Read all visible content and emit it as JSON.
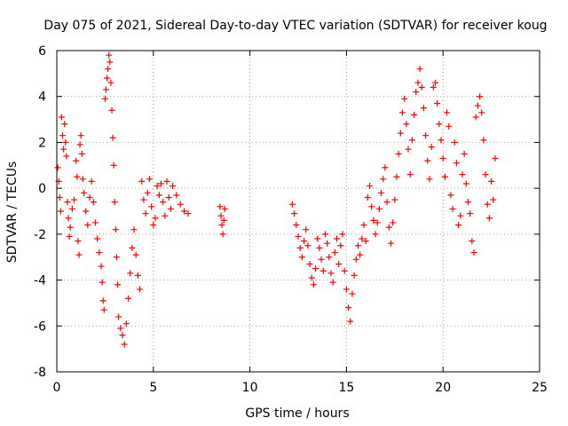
{
  "chart_data": {
    "type": "scatter",
    "title": "Day 075 of 2021, Sidereal Day-to-day VTEC variation (SDTVAR) for receiver koug",
    "xlabel": "GPS time / hours",
    "ylabel": "SDTVAR / TECUs",
    "xlim": [
      0,
      25
    ],
    "ylim": [
      -8,
      6
    ],
    "xticks": [
      0,
      5,
      10,
      15,
      20,
      25
    ],
    "yticks": [
      -8,
      -6,
      -4,
      -2,
      0,
      2,
      4,
      6
    ],
    "grid": true,
    "marker": "+",
    "color": "#ff0000",
    "series": [
      {
        "name": "SDTVAR",
        "points": [
          [
            0.05,
            0.9
          ],
          [
            0.1,
            0.3
          ],
          [
            0.15,
            -0.4
          ],
          [
            0.2,
            -1.0
          ],
          [
            0.25,
            3.1
          ],
          [
            0.3,
            2.3
          ],
          [
            0.35,
            1.7
          ],
          [
            0.4,
            2.8
          ],
          [
            0.45,
            2.0
          ],
          [
            0.5,
            1.4
          ],
          [
            0.55,
            -0.6
          ],
          [
            0.6,
            -1.3
          ],
          [
            0.65,
            -2.1
          ],
          [
            0.7,
            -1.7
          ],
          [
            0.8,
            -0.9
          ],
          [
            0.9,
            -0.5
          ],
          [
            1.0,
            1.2
          ],
          [
            1.05,
            0.5
          ],
          [
            1.1,
            -2.3
          ],
          [
            1.15,
            -2.9
          ],
          [
            1.2,
            1.9
          ],
          [
            1.25,
            2.3
          ],
          [
            1.3,
            1.5
          ],
          [
            1.35,
            0.4
          ],
          [
            1.4,
            -0.2
          ],
          [
            1.5,
            -1.0
          ],
          [
            1.6,
            -1.6
          ],
          [
            1.7,
            -0.4
          ],
          [
            1.8,
            0.3
          ],
          [
            1.9,
            -0.6
          ],
          [
            2.0,
            -1.5
          ],
          [
            2.1,
            -2.2
          ],
          [
            2.2,
            -2.8
          ],
          [
            2.3,
            -3.4
          ],
          [
            2.35,
            -4.1
          ],
          [
            2.4,
            -4.9
          ],
          [
            2.45,
            -5.3
          ],
          [
            2.5,
            3.9
          ],
          [
            2.55,
            4.3
          ],
          [
            2.6,
            4.8
          ],
          [
            2.65,
            5.2
          ],
          [
            2.7,
            5.8
          ],
          [
            2.75,
            5.5
          ],
          [
            2.8,
            4.6
          ],
          [
            2.85,
            3.4
          ],
          [
            2.9,
            2.2
          ],
          [
            2.95,
            1.0
          ],
          [
            3.0,
            -0.6
          ],
          [
            3.05,
            -1.8
          ],
          [
            3.1,
            -3.0
          ],
          [
            3.15,
            -4.2
          ],
          [
            3.2,
            -5.6
          ],
          [
            3.3,
            -6.1
          ],
          [
            3.4,
            -6.4
          ],
          [
            3.5,
            -6.8
          ],
          [
            3.6,
            -5.9
          ],
          [
            3.7,
            -4.8
          ],
          [
            3.8,
            -3.7
          ],
          [
            3.9,
            -2.6
          ],
          [
            4.0,
            -1.8
          ],
          [
            4.1,
            -2.9
          ],
          [
            4.2,
            -3.8
          ],
          [
            4.3,
            -4.4
          ],
          [
            4.4,
            0.3
          ],
          [
            4.5,
            -0.5
          ],
          [
            4.6,
            -1.1
          ],
          [
            4.7,
            -0.2
          ],
          [
            4.8,
            0.4
          ],
          [
            4.9,
            -0.8
          ],
          [
            5.0,
            -1.6
          ],
          [
            5.1,
            -1.3
          ],
          [
            5.2,
            0.1
          ],
          [
            5.3,
            -0.3
          ],
          [
            5.4,
            0.2
          ],
          [
            5.5,
            -0.6
          ],
          [
            5.6,
            -1.2
          ],
          [
            5.7,
            0.3
          ],
          [
            5.8,
            -0.4
          ],
          [
            5.9,
            -0.9
          ],
          [
            6.0,
            0.1
          ],
          [
            6.2,
            -0.3
          ],
          [
            6.4,
            -0.7
          ],
          [
            6.6,
            -1.0
          ],
          [
            6.8,
            -1.1
          ],
          [
            8.45,
            -0.8
          ],
          [
            8.5,
            -1.2
          ],
          [
            8.55,
            -1.6
          ],
          [
            8.6,
            -2.0
          ],
          [
            8.65,
            -1.4
          ],
          [
            8.7,
            -0.9
          ],
          [
            12.2,
            -0.7
          ],
          [
            12.3,
            -1.1
          ],
          [
            12.4,
            -1.6
          ],
          [
            12.5,
            -2.1
          ],
          [
            12.6,
            -2.6
          ],
          [
            12.7,
            -3.0
          ],
          [
            12.8,
            -2.3
          ],
          [
            12.9,
            -1.8
          ],
          [
            13.0,
            -2.5
          ],
          [
            13.1,
            -3.3
          ],
          [
            13.2,
            -3.9
          ],
          [
            13.3,
            -4.2
          ],
          [
            13.4,
            -3.5
          ],
          [
            13.5,
            -2.2
          ],
          [
            13.6,
            -2.6
          ],
          [
            13.7,
            -3.1
          ],
          [
            13.8,
            -3.6
          ],
          [
            13.9,
            -2.0
          ],
          [
            14.0,
            -2.4
          ],
          [
            14.1,
            -3.0
          ],
          [
            14.2,
            -3.7
          ],
          [
            14.3,
            -4.1
          ],
          [
            14.4,
            -2.8
          ],
          [
            14.5,
            -2.2
          ],
          [
            14.6,
            -3.3
          ],
          [
            14.7,
            -2.5
          ],
          [
            14.8,
            -2.0
          ],
          [
            14.9,
            -3.6
          ],
          [
            15.0,
            -4.4
          ],
          [
            15.1,
            -5.2
          ],
          [
            15.2,
            -5.8
          ],
          [
            15.3,
            -4.6
          ],
          [
            15.4,
            -3.8
          ],
          [
            15.5,
            -3.1
          ],
          [
            15.6,
            -2.5
          ],
          [
            15.7,
            -2.9
          ],
          [
            15.8,
            -2.2
          ],
          [
            15.9,
            -1.6
          ],
          [
            16.0,
            -2.3
          ],
          [
            16.1,
            -0.4
          ],
          [
            16.2,
            0.1
          ],
          [
            16.3,
            -0.8
          ],
          [
            16.4,
            -1.4
          ],
          [
            16.5,
            -2.0
          ],
          [
            16.6,
            -1.5
          ],
          [
            16.7,
            -0.9
          ],
          [
            16.8,
            -0.2
          ],
          [
            16.9,
            0.4
          ],
          [
            17.0,
            0.9
          ],
          [
            17.1,
            -0.6
          ],
          [
            17.2,
            -1.7
          ],
          [
            17.3,
            -2.4
          ],
          [
            17.4,
            -1.5
          ],
          [
            17.5,
            -0.5
          ],
          [
            17.6,
            0.5
          ],
          [
            17.7,
            1.5
          ],
          [
            17.8,
            2.4
          ],
          [
            17.9,
            3.3
          ],
          [
            18.0,
            3.9
          ],
          [
            18.1,
            2.8
          ],
          [
            18.2,
            1.7
          ],
          [
            18.3,
            0.6
          ],
          [
            18.4,
            2.1
          ],
          [
            18.5,
            3.2
          ],
          [
            18.6,
            4.2
          ],
          [
            18.7,
            4.6
          ],
          [
            18.8,
            5.2
          ],
          [
            18.9,
            4.4
          ],
          [
            19.0,
            3.5
          ],
          [
            19.1,
            2.3
          ],
          [
            19.2,
            1.2
          ],
          [
            19.3,
            0.4
          ],
          [
            19.4,
            1.8
          ],
          [
            19.5,
            4.4
          ],
          [
            19.6,
            4.6
          ],
          [
            19.7,
            3.7
          ],
          [
            19.8,
            2.8
          ],
          [
            19.9,
            2.1
          ],
          [
            20.0,
            1.3
          ],
          [
            20.1,
            0.5
          ],
          [
            20.2,
            3.3
          ],
          [
            20.3,
            2.7
          ],
          [
            20.4,
            -0.3
          ],
          [
            20.5,
            -0.9
          ],
          [
            20.6,
            2.0
          ],
          [
            20.7,
            1.1
          ],
          [
            20.8,
            -1.6
          ],
          [
            20.9,
            -1.2
          ],
          [
            21.0,
            0.6
          ],
          [
            21.1,
            1.5
          ],
          [
            21.2,
            0.2
          ],
          [
            21.3,
            -0.6
          ],
          [
            21.4,
            -1.1
          ],
          [
            21.5,
            -2.3
          ],
          [
            21.6,
            -2.8
          ],
          [
            21.7,
            3.1
          ],
          [
            21.8,
            3.6
          ],
          [
            21.9,
            4.0
          ],
          [
            22.0,
            3.3
          ],
          [
            22.1,
            2.1
          ],
          [
            22.2,
            0.6
          ],
          [
            22.3,
            -0.7
          ],
          [
            22.4,
            -1.3
          ],
          [
            22.5,
            0.3
          ],
          [
            22.6,
            -0.5
          ],
          [
            22.7,
            1.3
          ]
        ]
      }
    ]
  }
}
